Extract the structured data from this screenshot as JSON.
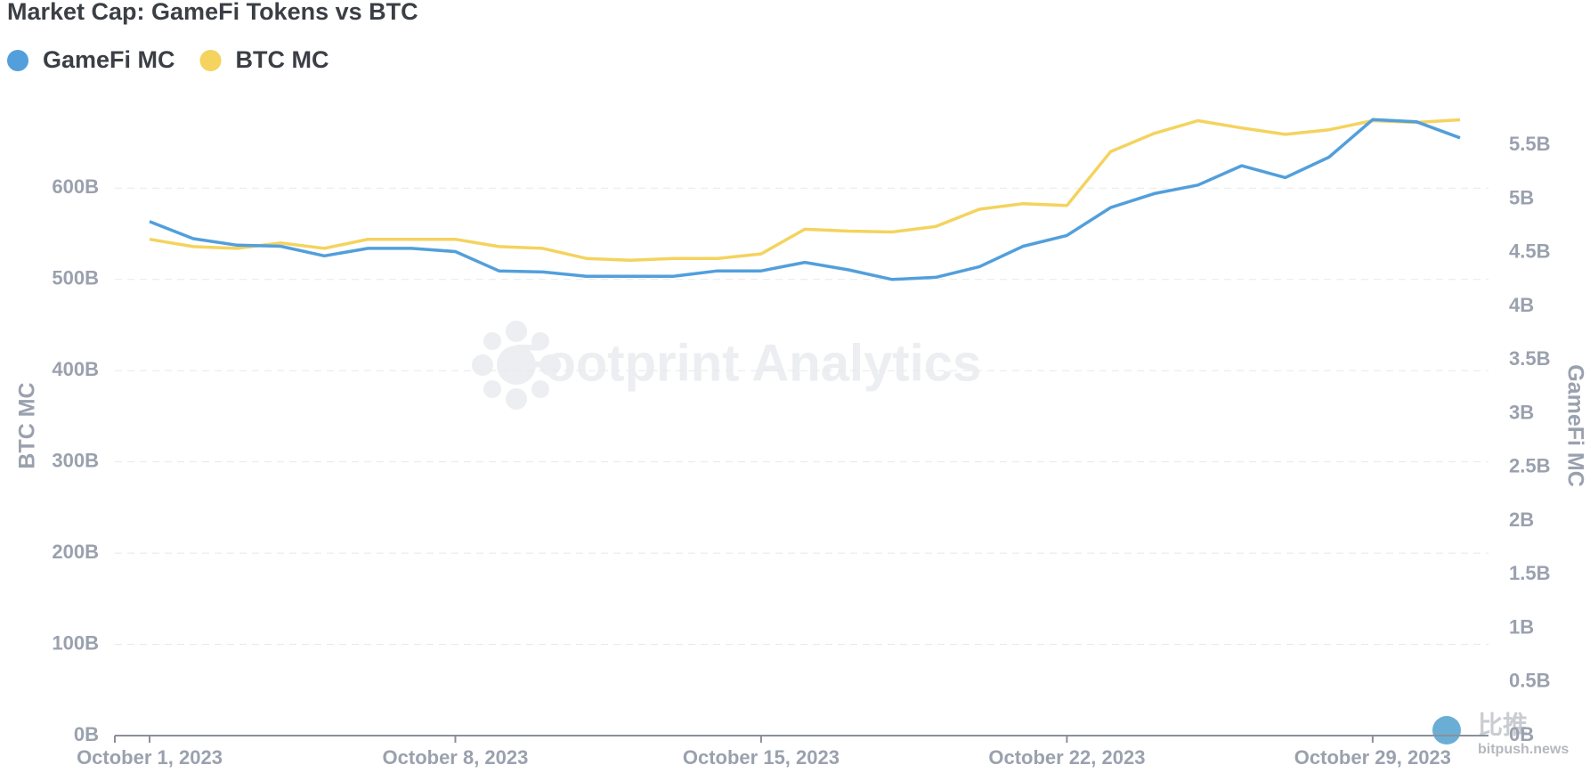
{
  "chart_data": {
    "type": "line",
    "title": "Market Cap: GameFi Tokens vs BTC",
    "watermark": "Footprint Analytics",
    "source_logo": "比推",
    "source_url": "bitpush.news",
    "x": [
      "2023-10-01",
      "2023-10-02",
      "2023-10-03",
      "2023-10-04",
      "2023-10-05",
      "2023-10-06",
      "2023-10-07",
      "2023-10-08",
      "2023-10-09",
      "2023-10-10",
      "2023-10-11",
      "2023-10-12",
      "2023-10-13",
      "2023-10-14",
      "2023-10-15",
      "2023-10-16",
      "2023-10-17",
      "2023-10-18",
      "2023-10-19",
      "2023-10-20",
      "2023-10-21",
      "2023-10-22",
      "2023-10-23",
      "2023-10-24",
      "2023-10-25",
      "2023-10-26",
      "2023-10-27",
      "2023-10-28",
      "2023-10-29",
      "2023-10-30",
      "2023-10-31"
    ],
    "xticks": [
      {
        "value": "2023-10-01",
        "label": "October 1, 2023"
      },
      {
        "value": "2023-10-08",
        "label": "October 8, 2023"
      },
      {
        "value": "2023-10-15",
        "label": "October 15, 2023"
      },
      {
        "value": "2023-10-22",
        "label": "October 22, 2023"
      },
      {
        "value": "2023-10-29",
        "label": "October 29, 2023"
      }
    ],
    "ylabel": "BTC MC",
    "y2label": "GameFi MC",
    "ylim": [
      0,
      694000000000
    ],
    "y2lim": [
      0,
      5900000000
    ],
    "yticks": [
      {
        "value": 0,
        "label": "0B"
      },
      {
        "value": 100000000000,
        "label": "100B"
      },
      {
        "value": 200000000000,
        "label": "200B"
      },
      {
        "value": 300000000000,
        "label": "300B"
      },
      {
        "value": 400000000000,
        "label": "400B"
      },
      {
        "value": 500000000000,
        "label": "500B"
      },
      {
        "value": 600000000000,
        "label": "600B"
      }
    ],
    "y2ticks": [
      {
        "value": 0,
        "label": "0B"
      },
      {
        "value": 500000000,
        "label": "0.5B"
      },
      {
        "value": 1000000000,
        "label": "1B"
      },
      {
        "value": 1500000000,
        "label": "1.5B"
      },
      {
        "value": 2000000000,
        "label": "2B"
      },
      {
        "value": 2500000000,
        "label": "2.5B"
      },
      {
        "value": 3000000000,
        "label": "3B"
      },
      {
        "value": 3500000000,
        "label": "3.5B"
      },
      {
        "value": 4000000000,
        "label": "4B"
      },
      {
        "value": 4500000000,
        "label": "4.5B"
      },
      {
        "value": 5000000000,
        "label": "5B"
      },
      {
        "value": 5500000000,
        "label": "5.5B"
      }
    ],
    "grid": true,
    "series": [
      {
        "name": "GameFi MC",
        "color": "#529fdc",
        "axis": "y2",
        "values": [
          4790000000,
          4630000000,
          4570000000,
          4560000000,
          4470000000,
          4540000000,
          4540000000,
          4510000000,
          4330000000,
          4320000000,
          4280000000,
          4280000000,
          4280000000,
          4330000000,
          4330000000,
          4410000000,
          4340000000,
          4250000000,
          4270000000,
          4370000000,
          4560000000,
          4660000000,
          4920000000,
          5050000000,
          5130000000,
          5310000000,
          5200000000,
          5390000000,
          5740000000,
          5720000000,
          5570000000
        ]
      },
      {
        "name": "BTC MC",
        "color": "#f4d35e",
        "values": [
          544000000000,
          536000000000,
          534000000000,
          540000000000,
          534000000000,
          544000000000,
          544000000000,
          544000000000,
          536000000000,
          534000000000,
          523000000000,
          521000000000,
          523000000000,
          523000000000,
          528000000000,
          555000000000,
          553000000000,
          552000000000,
          558000000000,
          577000000000,
          583000000000,
          581000000000,
          640000000000,
          660000000000,
          674000000000,
          666000000000,
          659000000000,
          664000000000,
          674000000000,
          672000000000,
          675000000000
        ]
      }
    ]
  }
}
